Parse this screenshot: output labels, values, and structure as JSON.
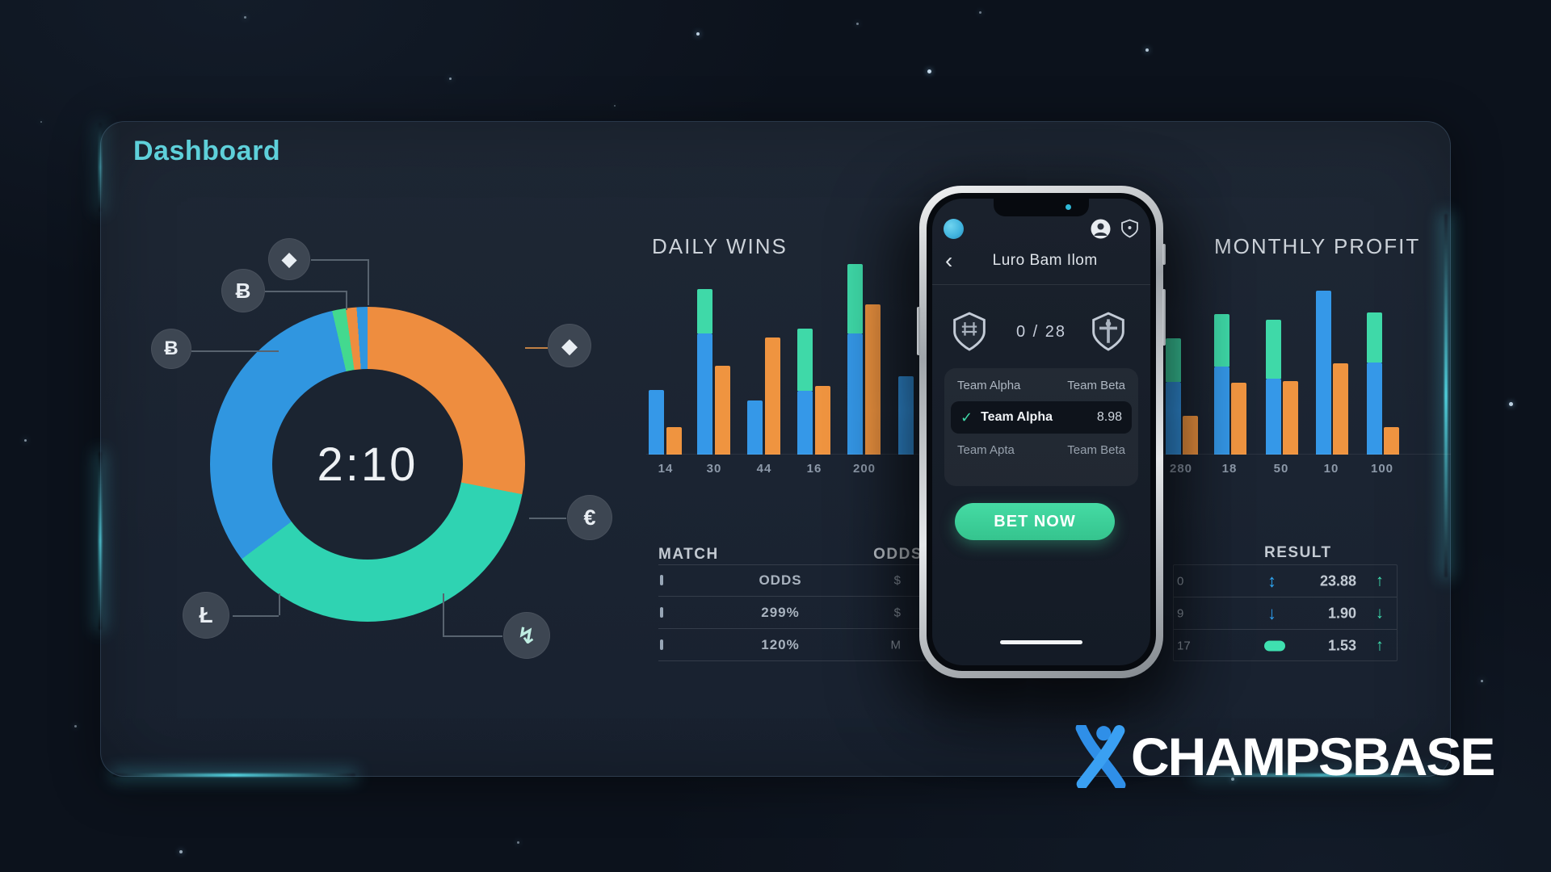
{
  "header": {
    "title": "Dashboard"
  },
  "colors": {
    "accent_blue": "#3598e8",
    "accent_teal": "#3fd9a8",
    "accent_orange": "#ef9440",
    "title_teal": "#5ed0da",
    "bet_green": "#3ed49c",
    "logo_blue": "#2f8fe8"
  },
  "donut": {
    "chart_data": {
      "type": "donut",
      "center_label": "2:10",
      "segments": [
        {
          "name": "orange",
          "color": "#ee8d3f",
          "from": 2,
          "to": 101
        },
        {
          "name": "teal",
          "color": "#2fd3b2",
          "from": 101,
          "to": 233
        },
        {
          "name": "blue",
          "color": "#3096e0",
          "from": 233,
          "to": 347
        },
        {
          "name": "teal-sliver",
          "color": "#43d98f",
          "from": 347,
          "to": 352
        },
        {
          "name": "orange-sliver",
          "color": "#ee8d3f",
          "from": 352,
          "to": 356
        },
        {
          "name": "blue-sliver",
          "color": "#3096e0",
          "from": 356,
          "to": 360
        }
      ]
    },
    "icons": [
      {
        "name": "ethereum-icon",
        "glyph": "◆"
      },
      {
        "name": "bitcoin-icon",
        "glyph": "Ƀ"
      },
      {
        "name": "bitcoin-small-icon",
        "glyph": "Ƀ"
      },
      {
        "name": "litecoin-icon",
        "glyph": "Ł"
      },
      {
        "name": "ethereum-right-icon",
        "glyph": "◆"
      },
      {
        "name": "euro-icon",
        "glyph": "€"
      },
      {
        "name": "spark-icon",
        "glyph": "↯"
      }
    ]
  },
  "daily_wins": {
    "title": "DAILY WINS",
    "chart_data": {
      "type": "bar",
      "categories": [
        "14",
        "30",
        "44",
        "16",
        "200",
        ""
      ],
      "series": [
        {
          "name": "blue",
          "color": "#3598e8",
          "values": [
            80,
            150,
            67,
            79,
            150,
            97
          ]
        },
        {
          "name": "teal-cap",
          "color": "#3fd9a8",
          "values": [
            0,
            55,
            0,
            77,
            86,
            0
          ]
        },
        {
          "name": "orange",
          "color": "#ef9440",
          "values": [
            34,
            110,
            145,
            85,
            186,
            0
          ]
        }
      ],
      "ylim": [
        0,
        250
      ],
      "grid": false
    }
  },
  "monthly_profit": {
    "title": "MONTHLY PROFIT",
    "chart_data": {
      "type": "bar",
      "categories": [
        "280",
        "18",
        "50",
        "10",
        "100"
      ],
      "series": [
        {
          "name": "blue",
          "color": "#3598e8",
          "values": [
            90,
            109,
            94,
            203,
            114
          ]
        },
        {
          "name": "teal-cap",
          "color": "#3fd9a8",
          "values": [
            54,
            65,
            73,
            0,
            62
          ]
        },
        {
          "name": "orange",
          "color": "#ef9440",
          "values": [
            48,
            89,
            91,
            113,
            34
          ]
        }
      ],
      "ylim": [
        0,
        250
      ],
      "grid": false
    }
  },
  "match_table": {
    "header_left": "MATCH",
    "header_right": "ODDS",
    "rows": [
      {
        "center": "ODDS",
        "right": "$"
      },
      {
        "center": "299%",
        "right": "$"
      },
      {
        "center": "120%",
        "right": "M"
      }
    ]
  },
  "result_table": {
    "header": "RESULT",
    "rows": [
      {
        "left": "0",
        "icon": "arrows-updown",
        "icon_glyph": "↕",
        "icon_color": "#2fa8f5",
        "value": "23.88",
        "trend": "up"
      },
      {
        "left": "9",
        "icon": "arrow-down",
        "icon_glyph": "↓",
        "icon_color": "#2f9ff0",
        "value": "1.90",
        "trend": "down"
      },
      {
        "left": "17",
        "icon": "pill",
        "icon_glyph": "",
        "icon_color": "#3fe0b0",
        "value": "1.53",
        "trend": "up"
      }
    ],
    "trend_up_glyph": "↑",
    "trend_down_glyph": "↓"
  },
  "phone": {
    "back_glyph": "‹",
    "title": "Luro Bam Ilom",
    "score": "0 / 28",
    "teams_header": {
      "left": "Team Alpha",
      "right": "Team Beta"
    },
    "selected_bet": {
      "check": "✓",
      "team": "Team Alpha",
      "odds": "8.98"
    },
    "secondary_row": {
      "left": "Team Apta",
      "right": "Team Beta"
    },
    "bet_button": "BET NOW"
  },
  "logo": {
    "text": "CHAMPSBASE"
  }
}
